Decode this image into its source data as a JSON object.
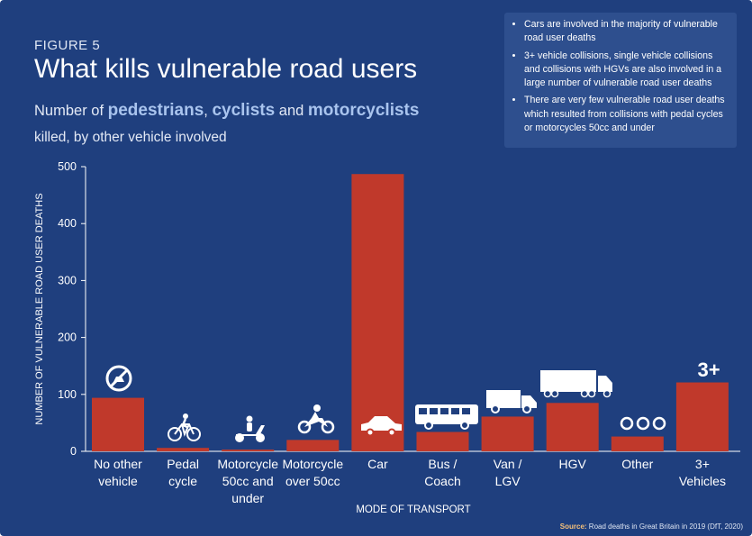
{
  "figure_label": "FIGURE 5",
  "title": "What kills vulnerable road users",
  "subtitle": {
    "part1": "Number of ",
    "pedestrians": "pedestrians",
    "sep1": ", ",
    "cyclists": "cyclists",
    "sep2": " and ",
    "motorcyclists": "motorcyclists",
    "line2": "killed, by other vehicle involved"
  },
  "notes": [
    "Cars are involved in the majority of vulnerable road user deaths",
    "3+ vehicle collisions, single vehicle collisions and collisions with HGVs are also involved in a large number of vulnerable road user deaths",
    "There are very few vulnerable road user deaths which resulted from collisions with pedal cycles or motorcycles 50cc and under"
  ],
  "source": {
    "label": "Source:",
    "text": " Road deaths in Great Britain in 2019 (DfT, 2020)"
  },
  "colors": {
    "background": "#1f3f7e",
    "bar": "#c0392b",
    "notes_box": "#2e4f8e",
    "highlight": "#a9c4ee"
  },
  "icons": [
    "no-vehicle-icon",
    "bicycle-icon",
    "scooter-icon",
    "motorbike-icon",
    "car-icon",
    "bus-icon",
    "van-icon",
    "lorry-icon",
    "dots-icon",
    "three-plus-text"
  ],
  "three_plus_icon_text": "3+",
  "chart_data": {
    "type": "bar",
    "categories": [
      [
        "No other",
        "vehicle"
      ],
      [
        "Pedal",
        "cycle"
      ],
      [
        "Motorcycle",
        "50cc and",
        "under"
      ],
      [
        "Motorcycle",
        "over 50cc"
      ],
      [
        "Car"
      ],
      [
        "Bus /",
        "Coach"
      ],
      [
        "Van /",
        "LGV"
      ],
      [
        "HGV"
      ],
      [
        "Other"
      ],
      [
        "3+",
        "Vehicles"
      ]
    ],
    "values": [
      94,
      6,
      3,
      20,
      487,
      34,
      61,
      85,
      26,
      121
    ],
    "xlabel": "MODE OF TRANSPORT",
    "ylabel": "NUMBER OF VULNERABLE ROAD USER DEATHS",
    "ylim": [
      0,
      500
    ],
    "yticks": [
      0,
      100,
      200,
      300,
      400,
      500
    ],
    "grid": false
  }
}
